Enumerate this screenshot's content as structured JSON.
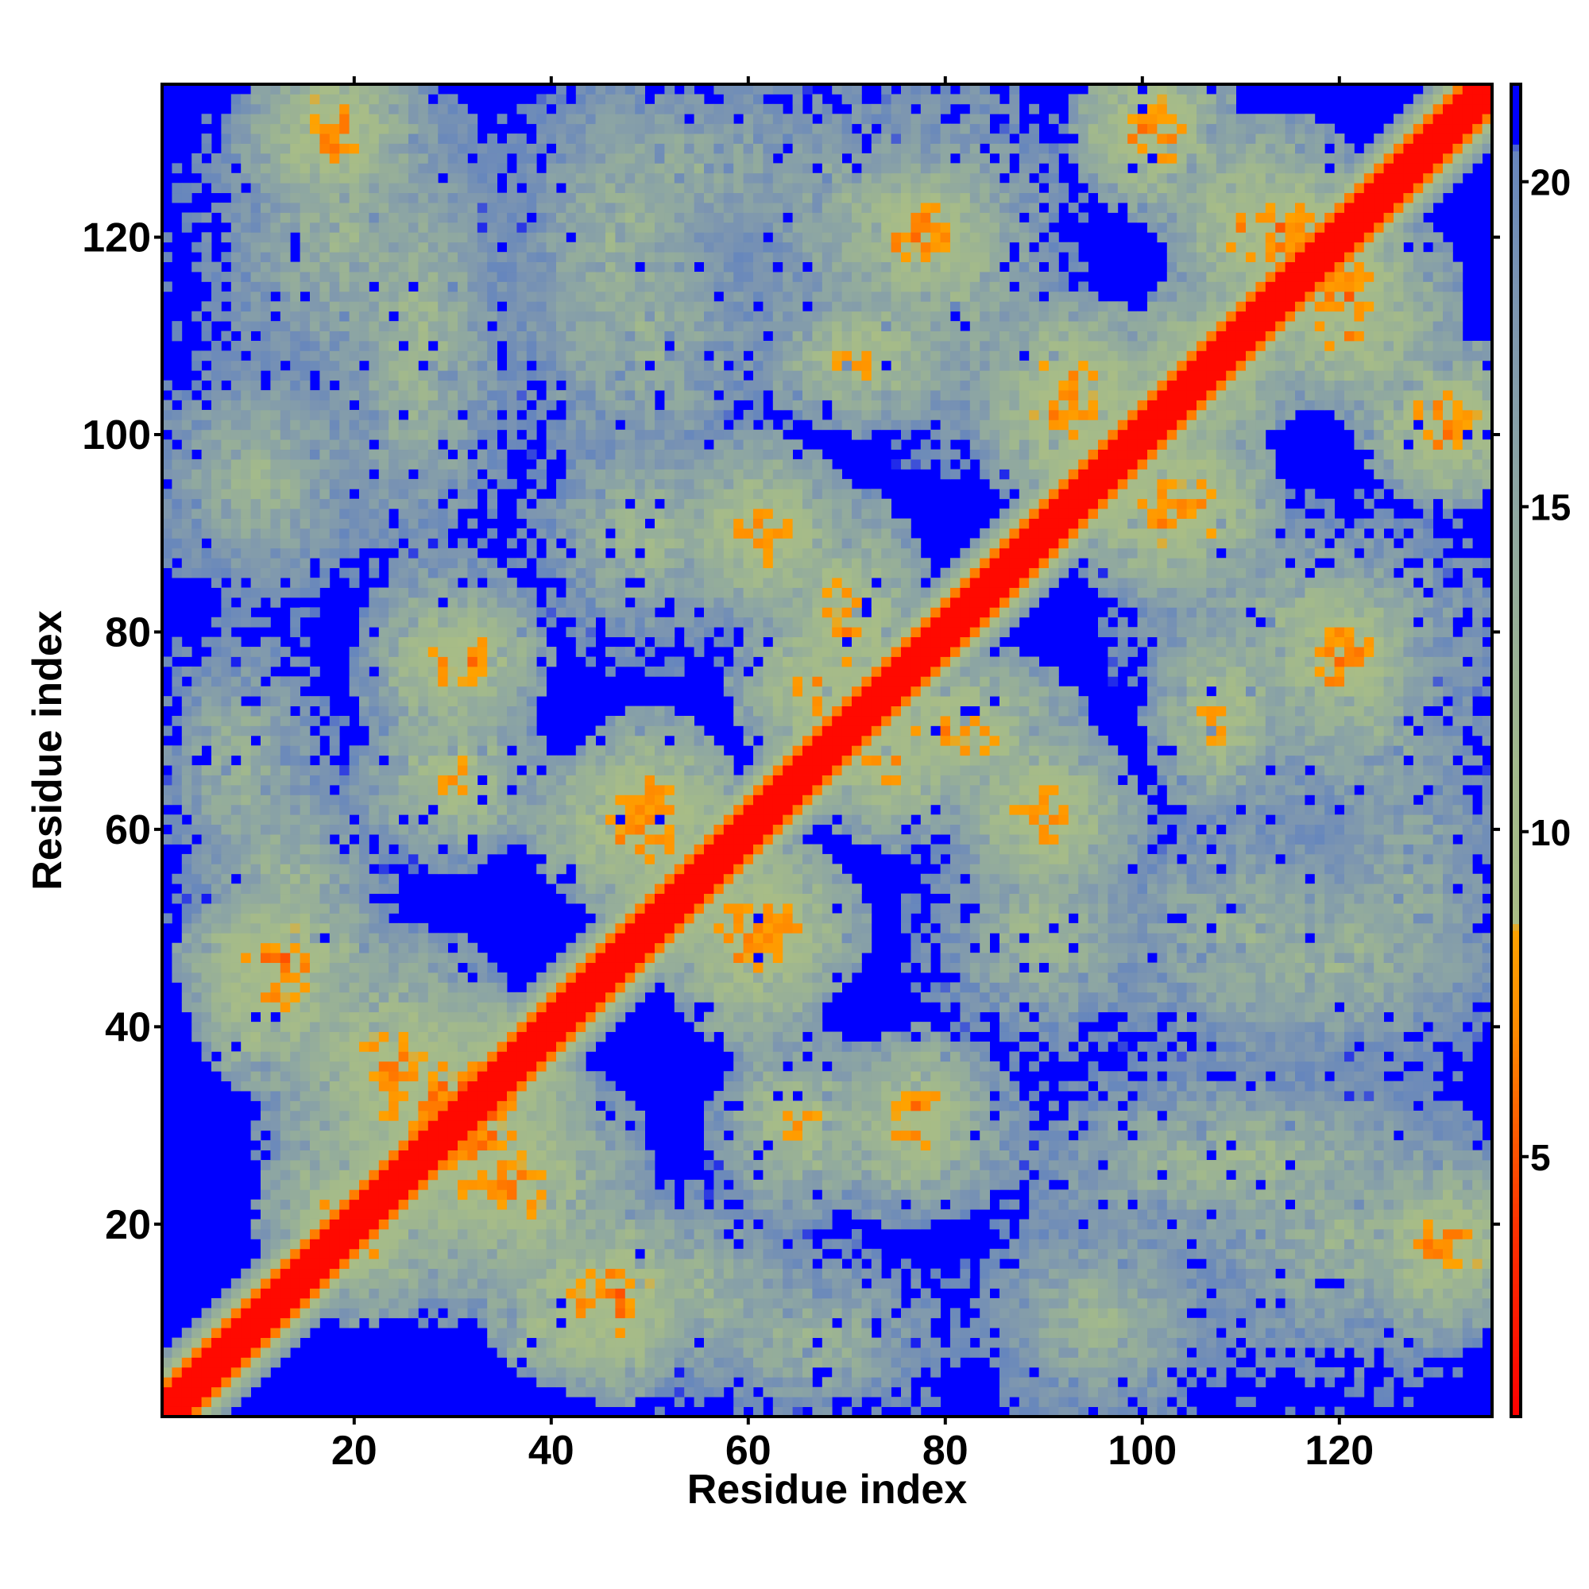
{
  "chart_data": {
    "type": "heatmap",
    "title": "",
    "xlabel": "Residue index",
    "ylabel": "Residue index",
    "n_residues": 135,
    "xlim": [
      1,
      135
    ],
    "ylim": [
      1,
      135
    ],
    "x_ticks": [
      20,
      40,
      60,
      80,
      100,
      120
    ],
    "y_ticks": [
      20,
      40,
      60,
      80,
      100,
      120
    ],
    "colorbar": {
      "ticks": [
        5,
        10,
        15,
        20
      ],
      "range": [
        1,
        21.5
      ],
      "stops": [
        {
          "value": 1,
          "color": "#ff0000"
        },
        {
          "value": 4,
          "color": "#ff3300"
        },
        {
          "value": 7,
          "color": "#ff8c00"
        },
        {
          "value": 8.5,
          "color": "#ffa200"
        },
        {
          "value": 8.6,
          "color": "#a9bd86"
        },
        {
          "value": 11,
          "color": "#a2b98c"
        },
        {
          "value": 15,
          "color": "#8ea7a2"
        },
        {
          "value": 18,
          "color": "#7d96b0"
        },
        {
          "value": 20.5,
          "color": "#6686bd"
        },
        {
          "value": 20.6,
          "color": "#0000ff"
        },
        {
          "value": 21.5,
          "color": "#0000ff"
        }
      ]
    },
    "diagonal_band": {
      "full": 2,
      "halo": 6
    },
    "contact_regions": [
      {
        "x": [
          6,
          19
        ],
        "y": [
          42,
          51
        ],
        "value": 6.5
      },
      {
        "x": [
          14,
          34
        ],
        "y": [
          20,
          46
        ],
        "value": 9
      },
      {
        "x": [
          22,
          39
        ],
        "y": [
          24,
          40
        ],
        "value": 6
      },
      {
        "x": [
          28,
          44
        ],
        "y": [
          18,
          30
        ],
        "value": 7
      },
      {
        "x": [
          37,
          50
        ],
        "y": [
          7,
          16
        ],
        "value": 7
      },
      {
        "x": [
          14,
          24
        ],
        "y": [
          15,
          26
        ],
        "value": 7
      },
      {
        "x": [
          24,
          35
        ],
        "y": [
          69,
          84
        ],
        "value": 8.5
      },
      {
        "x": [
          42,
          56
        ],
        "y": [
          55,
          66
        ],
        "value": 6.5
      },
      {
        "x": [
          56,
          68
        ],
        "y": [
          45,
          55
        ],
        "value": 6.5
      },
      {
        "x": [
          70,
          79
        ],
        "y": [
          62,
          72
        ],
        "value": 7
      },
      {
        "x": [
          65,
          75
        ],
        "y": [
          72,
          90
        ],
        "value": 7.5
      },
      {
        "x": [
          56,
          68
        ],
        "y": [
          84,
          95
        ],
        "value": 8
      },
      {
        "x": [
          85,
          96
        ],
        "y": [
          56,
          66
        ],
        "value": 7.5
      },
      {
        "x": [
          87,
          98
        ],
        "y": [
          95,
          108
        ],
        "value": 7
      },
      {
        "x": [
          100,
          110
        ],
        "y": [
          87,
          99
        ],
        "value": 7
      },
      {
        "x": [
          101,
          111
        ],
        "y": [
          101,
          112
        ],
        "value": 7.5
      },
      {
        "x": [
          108,
          120
        ],
        "y": [
          113,
          128
        ],
        "value": 7
      },
      {
        "x": [
          114,
          128
        ],
        "y": [
          106,
          116
        ],
        "value": 7.5
      },
      {
        "x": [
          14,
          22
        ],
        "y": [
          127,
          136
        ],
        "value": 7
      },
      {
        "x": [
          98,
          106
        ],
        "y": [
          125,
          136
        ],
        "value": 7
      },
      {
        "x": [
          75,
          82
        ],
        "y": [
          117,
          124
        ],
        "value": 6.5
      },
      {
        "x": [
          74,
          81
        ],
        "y": [
          28,
          36
        ],
        "value": 7
      },
      {
        "x": [
          60,
          70
        ],
        "y": [
          24,
          36
        ],
        "value": 8.5
      },
      {
        "x": [
          104,
          112
        ],
        "y": [
          65,
          78
        ],
        "value": 8
      },
      {
        "x": [
          116,
          124
        ],
        "y": [
          73,
          80
        ],
        "value": 6.5
      },
      {
        "x": [
          125,
          135
        ],
        "y": [
          12,
          24
        ],
        "value": 7.5
      },
      {
        "x": [
          127,
          135
        ],
        "y": [
          96,
          103
        ],
        "value": 7
      },
      {
        "x": [
          20,
          33
        ],
        "y": [
          89,
          130
        ],
        "value": 11
      },
      {
        "x": [
          38,
          56
        ],
        "y": [
          105,
          135
        ],
        "value": 12
      },
      {
        "x": [
          72,
          90
        ],
        "y": [
          100,
          135
        ],
        "value": 11.5
      },
      {
        "x": [
          1,
          20
        ],
        "y": [
          86,
          106
        ],
        "value": 12
      },
      {
        "x": [
          2,
          15
        ],
        "y": [
          55,
          78
        ],
        "value": 12
      },
      {
        "x": [
          44,
          66
        ],
        "y": [
          5,
          22
        ],
        "value": 12
      },
      {
        "x": [
          84,
          104
        ],
        "y": [
          3,
          18
        ],
        "value": 12.5
      },
      {
        "x": [
          104,
          135
        ],
        "y": [
          5,
          33
        ],
        "value": 12.5
      },
      {
        "x": [
          96,
          124
        ],
        "y": [
          36,
          62
        ],
        "value": 12.5
      },
      {
        "x": [
          120,
          135
        ],
        "y": [
          36,
          70
        ],
        "value": 13
      },
      {
        "x": [
          60,
          80
        ],
        "y": [
          110,
          135
        ],
        "value": 12.5
      },
      {
        "x": [
          40,
          60
        ],
        "y": [
          80,
          100
        ],
        "value": 11.5
      }
    ]
  }
}
